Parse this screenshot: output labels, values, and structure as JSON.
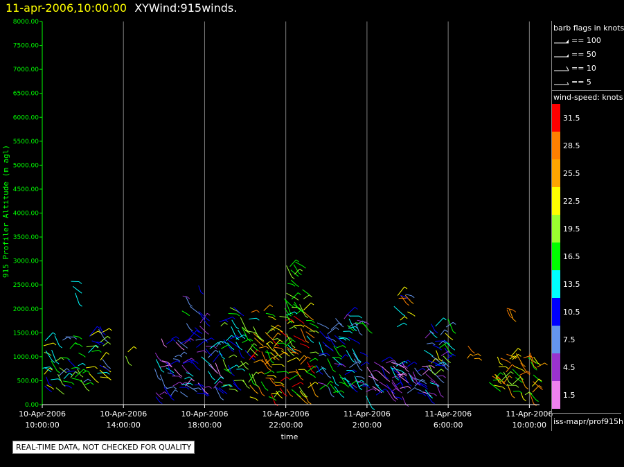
{
  "title": {
    "date": "11-apr-2006,10:00:00",
    "name": "XYWind:915winds."
  },
  "chart_data": {
    "type": "scatter",
    "ylabel": "915 Profiler Altitude (m agl)",
    "xlabel": "time",
    "ylim": [
      0,
      8000
    ],
    "xlim_hours": [
      0,
      24.5
    ],
    "yticks": [
      "0.00",
      "500.00",
      "1000.00",
      "1500.00",
      "2000.00",
      "2500.00",
      "3000.00",
      "3500.00",
      "4000.00",
      "4500.00",
      "5000.00",
      "5500.00",
      "6000.00",
      "6500.00",
      "7000.00",
      "7500.00",
      "8000.00"
    ],
    "xticks": [
      {
        "date": "10-Apr-2006",
        "time": "10:00:00",
        "hour": 0
      },
      {
        "date": "10-Apr-2006",
        "time": "14:00:00",
        "hour": 4
      },
      {
        "date": "10-Apr-2006",
        "time": "18:00:00",
        "hour": 8
      },
      {
        "date": "10-Apr-2006",
        "time": "22:00:00",
        "hour": 12
      },
      {
        "date": "11-Apr-2006",
        "time": "2:00:00",
        "hour": 16
      },
      {
        "date": "11-Apr-2006",
        "time": "6:00:00",
        "hour": 20
      },
      {
        "date": "11-Apr-2006",
        "time": "10:00:00",
        "hour": 24
      }
    ],
    "grid": "vertical",
    "wind_clusters": [
      {
        "t0": 0,
        "t1": 3.0,
        "z0": 350,
        "z1": 1500,
        "s0": 7,
        "s1": 24,
        "n": 60
      },
      {
        "t0": 1.4,
        "t1": 1.7,
        "z0": 2150,
        "z1": 2600,
        "s0": 10,
        "s1": 16,
        "n": 3
      },
      {
        "t0": 2.7,
        "t1": 3.3,
        "z0": 1500,
        "z1": 1650,
        "s0": 8,
        "s1": 11,
        "n": 2
      },
      {
        "t0": 3.8,
        "t1": 4.3,
        "z0": 950,
        "z1": 1150,
        "s0": 20,
        "s1": 23,
        "n": 2
      },
      {
        "t0": 5.5,
        "t1": 8.6,
        "z0": 150,
        "z1": 1400,
        "s0": 1,
        "s1": 14,
        "n": 70
      },
      {
        "t0": 6.8,
        "t1": 8.0,
        "z0": 1500,
        "z1": 2600,
        "s0": 3,
        "s1": 18,
        "n": 12
      },
      {
        "t0": 8.5,
        "t1": 10.2,
        "z0": 300,
        "z1": 2100,
        "s0": 9,
        "s1": 21,
        "n": 45
      },
      {
        "t0": 10.2,
        "t1": 13.2,
        "z0": 150,
        "z1": 2000,
        "s0": 14,
        "s1": 32,
        "n": 110
      },
      {
        "t0": 11.9,
        "t1": 12.9,
        "z0": 1800,
        "z1": 3200,
        "s0": 15,
        "s1": 19,
        "n": 20
      },
      {
        "t0": 13.5,
        "t1": 15.8,
        "z0": 250,
        "z1": 1900,
        "s0": 5,
        "s1": 17,
        "n": 70
      },
      {
        "t0": 15.8,
        "t1": 19.5,
        "z0": 150,
        "z1": 900,
        "s0": 1,
        "s1": 13,
        "n": 70
      },
      {
        "t0": 17.3,
        "t1": 18.3,
        "z0": 1500,
        "z1": 2350,
        "s0": 7,
        "s1": 30,
        "n": 10
      },
      {
        "t0": 18.8,
        "t1": 20.0,
        "z0": 600,
        "z1": 1800,
        "s0": 3,
        "s1": 22,
        "n": 30
      },
      {
        "t0": 20.7,
        "t1": 21.3,
        "z0": 100,
        "z1": 1500,
        "s0": 24,
        "s1": 28,
        "n": 4
      },
      {
        "t0": 22.0,
        "t1": 24.4,
        "z0": 200,
        "z1": 1100,
        "s0": 15,
        "s1": 30,
        "n": 45
      },
      {
        "t0": 22.6,
        "t1": 23.1,
        "z0": 1950,
        "z1": 2050,
        "s0": 26,
        "s1": 29,
        "n": 3
      }
    ]
  },
  "legend": {
    "barb_title": "barb flags in knots",
    "barb_items": [
      "== 100",
      "== 50",
      "== 10",
      "== 5"
    ],
    "speed_title": "wind-speed: knots",
    "speed_items": [
      {
        "label": "31.5",
        "color": "#ff0000"
      },
      {
        "label": "28.5",
        "color": "#ff7f00"
      },
      {
        "label": "25.5",
        "color": "#ffa500"
      },
      {
        "label": "22.5",
        "color": "#ffff00"
      },
      {
        "label": "19.5",
        "color": "#9aff2f"
      },
      {
        "label": "16.5",
        "color": "#00ff00"
      },
      {
        "label": "13.5",
        "color": "#00ffff"
      },
      {
        "label": "10.5",
        "color": "#0000ff"
      },
      {
        "label": "7.5",
        "color": "#6495ed"
      },
      {
        "label": "4.5",
        "color": "#9a32cd"
      },
      {
        "label": "1.5",
        "color": "#ee82ee"
      }
    ],
    "source": "iss-mapr/prof915h"
  },
  "note": "REAL-TIME DATA, NOT CHECKED FOR QUALITY",
  "colors": {
    "axis": "#00ff00",
    "title_date": "#ffff00",
    "grid": "#808080"
  }
}
